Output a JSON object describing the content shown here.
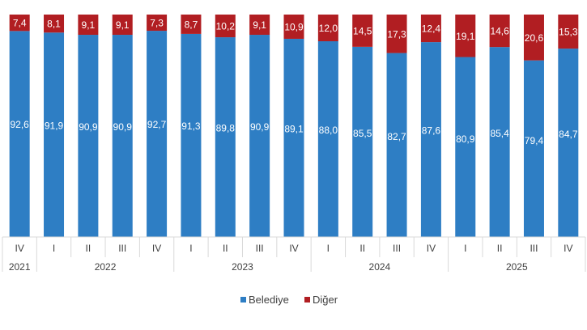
{
  "chart_data": {
    "type": "bar",
    "stacked": true,
    "orientation": "vertical",
    "ylim": [
      0,
      100
    ],
    "grid": false,
    "legend_position": "bottom",
    "quarters": [
      "IV",
      "I",
      "II",
      "III",
      "IV",
      "I",
      "II",
      "III",
      "IV",
      "I",
      "II",
      "III",
      "IV",
      "I",
      "II",
      "III",
      "IV"
    ],
    "year_groups": [
      {
        "label": "2021",
        "count": 1
      },
      {
        "label": "2022",
        "count": 4
      },
      {
        "label": "2023",
        "count": 4
      },
      {
        "label": "2024",
        "count": 4
      },
      {
        "label": "2025",
        "count": 4
      }
    ],
    "series": [
      {
        "name": "Belediye",
        "color": "#2E7EC4",
        "values": [
          92.6,
          91.9,
          90.9,
          90.9,
          92.7,
          91.3,
          89.8,
          90.9,
          89.1,
          88.0,
          85.5,
          82.7,
          87.6,
          80.9,
          85.4,
          79.4,
          84.7
        ],
        "labels": [
          "92,6",
          "91,9",
          "90,9",
          "90,9",
          "92,7",
          "91,3",
          "89,8",
          "90,9",
          "89,1",
          "88,0",
          "85,5",
          "82,7",
          "87,6",
          "80,9",
          "85,4",
          "79,4",
          "84,7"
        ]
      },
      {
        "name": "Diğer",
        "color": "#B11E22",
        "values": [
          7.4,
          8.1,
          9.1,
          9.1,
          7.3,
          8.7,
          10.2,
          9.1,
          10.9,
          12.0,
          14.5,
          17.3,
          12.4,
          19.1,
          14.6,
          20.6,
          15.3
        ],
        "labels": [
          "7,4",
          "8,1",
          "9,1",
          "9,1",
          "7,3",
          "8,7",
          "10,2",
          "9,1",
          "10,9",
          "12,0",
          "14,5",
          "17,3",
          "12,4",
          "19,1",
          "14,6",
          "20,6",
          "15,3"
        ]
      }
    ]
  }
}
